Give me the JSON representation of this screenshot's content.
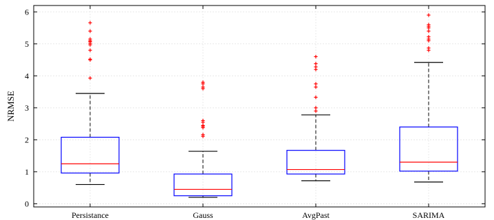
{
  "chart_data": {
    "type": "box",
    "title": "",
    "xlabel": "",
    "ylabel": "NRMSE",
    "ylim": [
      -0.1,
      6.2
    ],
    "yticks": [
      0,
      1,
      2,
      3,
      4,
      5,
      6
    ],
    "grid": true,
    "colors": {
      "box": "#0000ff",
      "median": "#ff0000",
      "whisker": "#000000",
      "outlier": "#ff0000",
      "grid": "#e8e8e8",
      "axis": "#000000"
    },
    "categories": [
      "Persistance",
      "Gauss",
      "AvgPast",
      "SARIMA"
    ],
    "boxes": [
      {
        "label": "Persistance",
        "whisker_low": 0.6,
        "q1": 0.96,
        "median": 1.25,
        "q3": 2.08,
        "whisker_high": 3.45,
        "outliers": [
          3.93,
          4.5,
          4.52,
          4.8,
          4.97,
          5.02,
          5.07,
          5.1,
          5.15,
          5.4,
          5.66
        ]
      },
      {
        "label": "Gauss",
        "whisker_low": 0.2,
        "q1": 0.25,
        "median": 0.45,
        "q3": 0.93,
        "whisker_high": 1.64,
        "outliers": [
          2.11,
          2.16,
          2.38,
          2.42,
          2.45,
          2.55,
          2.6,
          3.6,
          3.65,
          3.75,
          3.8
        ]
      },
      {
        "label": "AvgPast",
        "whisker_low": 0.72,
        "q1": 0.93,
        "median": 1.07,
        "q3": 1.67,
        "whisker_high": 2.78,
        "outliers": [
          2.9,
          3.0,
          3.33,
          3.65,
          3.75,
          4.2,
          4.28,
          4.38,
          4.6
        ]
      },
      {
        "label": "SARIMA",
        "whisker_low": 0.68,
        "q1": 1.02,
        "median": 1.3,
        "q3": 2.4,
        "whisker_high": 4.42,
        "outliers": [
          4.8,
          4.87,
          5.1,
          5.15,
          5.22,
          5.4,
          5.5,
          5.55,
          5.6,
          5.9
        ]
      }
    ]
  }
}
